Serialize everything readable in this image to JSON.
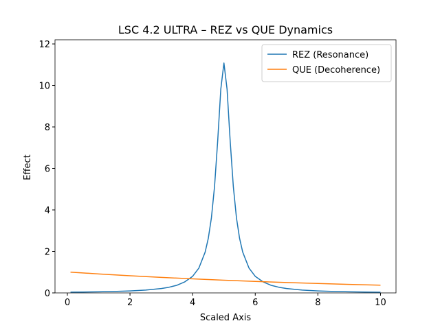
{
  "chart_data": {
    "type": "line",
    "title": "LSC 4.2 ULTRA – REZ vs QUE Dynamics",
    "x_label": "Scaled Axis",
    "y_label": "Effect",
    "xlim": [
      -0.395,
      10.495
    ],
    "ylim": [
      0,
      12.2
    ],
    "xticks": [
      0,
      2,
      4,
      6,
      8,
      10
    ],
    "yticks": [
      0,
      2,
      4,
      6,
      8,
      10,
      12
    ],
    "grid": false,
    "legend": "upper right",
    "series": [
      {
        "name": "REZ (Resonance)",
        "color": "#1f77b4",
        "x": [
          0.1,
          0.5,
          1,
          1.5,
          2,
          2.5,
          3,
          3.25,
          3.5,
          3.75,
          4,
          4.2,
          4.4,
          4.5,
          4.6,
          4.7,
          4.8,
          4.9,
          5,
          5.1,
          5.2,
          5.3,
          5.4,
          5.5,
          5.6,
          5.8,
          6,
          6.25,
          6.5,
          6.75,
          7,
          7.5,
          8,
          8.5,
          9,
          9.5,
          10
        ],
        "values": [
          0.036,
          0.042,
          0.054,
          0.07,
          0.095,
          0.136,
          0.211,
          0.274,
          0.369,
          0.533,
          0.798,
          1.198,
          1.965,
          2.625,
          3.617,
          5.125,
          7.31,
          9.82,
          11.08,
          9.82,
          7.31,
          5.125,
          3.617,
          2.625,
          1.965,
          1.198,
          0.798,
          0.533,
          0.369,
          0.274,
          0.211,
          0.136,
          0.095,
          0.07,
          0.054,
          0.042,
          0.034
        ]
      },
      {
        "name": "QUE (Decoherence)",
        "color": "#ff7f0e",
        "x": [
          0.1,
          1,
          2,
          3,
          4,
          5,
          6,
          7,
          8,
          9,
          10
        ],
        "values": [
          1.0,
          0.914,
          0.827,
          0.748,
          0.677,
          0.613,
          0.554,
          0.502,
          0.454,
          0.411,
          0.372
        ]
      }
    ]
  }
}
